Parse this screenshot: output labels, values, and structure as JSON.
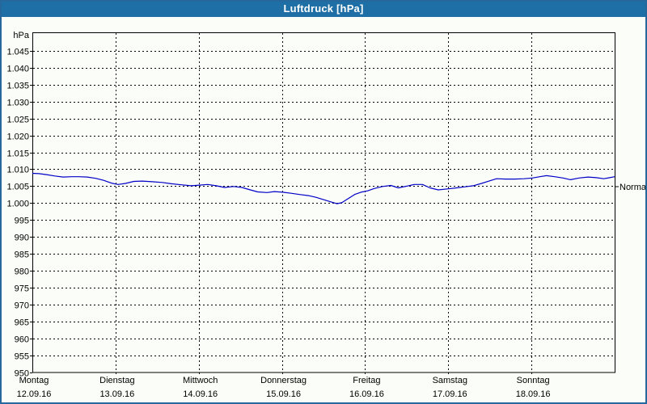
{
  "window": {
    "title": "Luftdruck [hPa]",
    "titlebar_color": "#1d6fa5",
    "border_color": "#26689c",
    "background_color": "#fbfdf8"
  },
  "chart_data": {
    "type": "line",
    "title": "Luftdruck [hPa]",
    "ylabel": "hPa",
    "ylim": [
      950,
      1050.5
    ],
    "ytick_min": 950,
    "ytick_max": 1045,
    "ytick_step": 5,
    "ytick_labels": [
      "950",
      "955",
      "960",
      "965",
      "970",
      "975",
      "980",
      "985",
      "990",
      "995",
      "1.000",
      "1.005",
      "1.010",
      "1.015",
      "1.020",
      "1.025",
      "1.030",
      "1.035",
      "1.040",
      "1.045"
    ],
    "grid": "dashed",
    "line_color": "#0000c8",
    "grid_color": "#000000",
    "days": [
      {
        "name": "Montag",
        "date": "12.09.16"
      },
      {
        "name": "Dienstag",
        "date": "13.09.16"
      },
      {
        "name": "Mittwoch",
        "date": "14.09.16"
      },
      {
        "name": "Donnerstag",
        "date": "15.09.16"
      },
      {
        "name": "Freitag",
        "date": "16.09.16"
      },
      {
        "name": "Samstag",
        "date": "17.09.16"
      },
      {
        "name": "Sonntag",
        "date": "18.09.16"
      }
    ],
    "normal_marker": {
      "label": "Normal",
      "value": 1004.8
    },
    "series": [
      {
        "name": "Luftdruck",
        "unit": "hPa",
        "points": [
          [
            0.0,
            1008.8
          ],
          [
            0.08,
            1008.7
          ],
          [
            0.17,
            1008.4
          ],
          [
            0.27,
            1008.0
          ],
          [
            0.37,
            1007.7
          ],
          [
            0.47,
            1007.8
          ],
          [
            0.56,
            1007.8
          ],
          [
            0.66,
            1007.7
          ],
          [
            0.76,
            1007.3
          ],
          [
            0.86,
            1006.7
          ],
          [
            0.95,
            1005.9
          ],
          [
            1.03,
            1005.5
          ],
          [
            1.12,
            1005.8
          ],
          [
            1.22,
            1006.4
          ],
          [
            1.32,
            1006.5
          ],
          [
            1.44,
            1006.3
          ],
          [
            1.56,
            1006.1
          ],
          [
            1.67,
            1005.7
          ],
          [
            1.79,
            1005.4
          ],
          [
            1.91,
            1005.1
          ],
          [
            2.01,
            1005.3
          ],
          [
            2.11,
            1005.5
          ],
          [
            2.21,
            1005.1
          ],
          [
            2.31,
            1004.6
          ],
          [
            2.42,
            1004.9
          ],
          [
            2.52,
            1004.6
          ],
          [
            2.62,
            1003.9
          ],
          [
            2.71,
            1003.3
          ],
          [
            2.82,
            1003.1
          ],
          [
            2.91,
            1003.4
          ],
          [
            3.01,
            1003.2
          ],
          [
            3.11,
            1002.9
          ],
          [
            3.22,
            1002.5
          ],
          [
            3.32,
            1002.2
          ],
          [
            3.41,
            1001.7
          ],
          [
            3.5,
            1001.0
          ],
          [
            3.58,
            1000.4
          ],
          [
            3.66,
            999.8
          ],
          [
            3.72,
            1000.1
          ],
          [
            3.79,
            1001.2
          ],
          [
            3.88,
            1002.6
          ],
          [
            3.95,
            1003.2
          ],
          [
            4.03,
            1003.6
          ],
          [
            4.11,
            1004.3
          ],
          [
            4.21,
            1004.9
          ],
          [
            4.31,
            1005.2
          ],
          [
            4.4,
            1004.5
          ],
          [
            4.5,
            1005.0
          ],
          [
            4.59,
            1005.5
          ],
          [
            4.69,
            1005.5
          ],
          [
            4.78,
            1004.5
          ],
          [
            4.88,
            1003.9
          ],
          [
            5.0,
            1004.2
          ],
          [
            5.1,
            1004.5
          ],
          [
            5.2,
            1004.8
          ],
          [
            5.3,
            1005.1
          ],
          [
            5.4,
            1005.8
          ],
          [
            5.49,
            1006.5
          ],
          [
            5.58,
            1007.2
          ],
          [
            5.69,
            1007.1
          ],
          [
            5.8,
            1007.1
          ],
          [
            5.91,
            1007.2
          ],
          [
            6.01,
            1007.4
          ],
          [
            6.1,
            1007.8
          ],
          [
            6.18,
            1008.1
          ],
          [
            6.28,
            1007.8
          ],
          [
            6.38,
            1007.4
          ],
          [
            6.47,
            1006.9
          ],
          [
            6.57,
            1007.4
          ],
          [
            6.68,
            1007.7
          ],
          [
            6.78,
            1007.5
          ],
          [
            6.87,
            1007.2
          ],
          [
            6.94,
            1007.5
          ],
          [
            7.0,
            1007.8
          ]
        ]
      }
    ]
  }
}
